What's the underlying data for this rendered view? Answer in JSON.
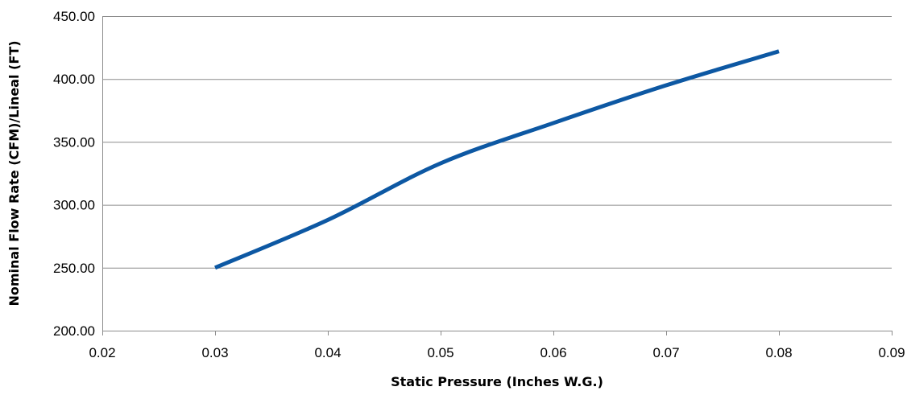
{
  "chart_data": {
    "type": "line",
    "title": "",
    "xlabel": "Static Pressure (Inches W.G.)",
    "ylabel": "Nominal Flow Rate (CFM)/Lineal (FT)",
    "xlim": [
      0.02,
      0.09
    ],
    "ylim": [
      200,
      450
    ],
    "x_ticks": [
      0.02,
      0.03,
      0.04,
      0.05,
      0.06,
      0.07,
      0.08,
      0.09
    ],
    "x_tick_labels": [
      "0.02",
      "0.03",
      "0.04",
      "0.05",
      "0.06",
      "0.07",
      "0.08",
      "0.09"
    ],
    "y_ticks": [
      200,
      250,
      300,
      350,
      400,
      450
    ],
    "y_tick_labels": [
      "200.00",
      "250.00",
      "300.00",
      "350.00",
      "400.00",
      "450.00"
    ],
    "grid": "horizontal",
    "legend": "none",
    "series": [
      {
        "color": "#0d58a3",
        "x": [
          0.03,
          0.04,
          0.05,
          0.06,
          0.07,
          0.08
        ],
        "y": [
          250,
          288,
          333,
          365,
          395,
          422
        ]
      }
    ]
  }
}
